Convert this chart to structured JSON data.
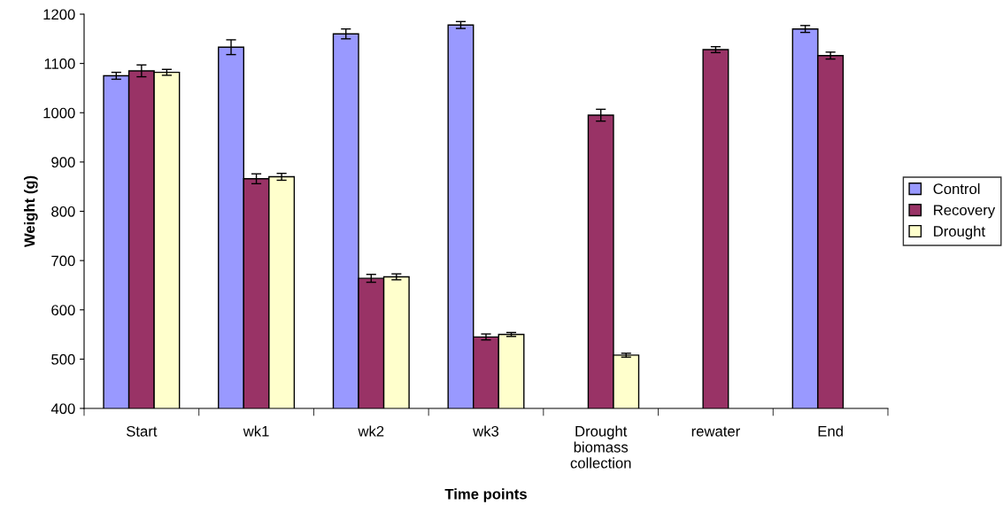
{
  "chart_data": {
    "type": "bar",
    "xlabel": "Time points",
    "ylabel": "Weight (g)",
    "categories": [
      "Start",
      "wk1",
      "wk2",
      "wk3",
      "Drought\nbiomass\ncollection",
      "rewater",
      "End"
    ],
    "series": [
      {
        "name": "Control",
        "color": "#9999ff",
        "values": [
          1075,
          1133,
          1160,
          1178,
          null,
          null,
          1170
        ],
        "errors": [
          7,
          15,
          10,
          7,
          null,
          null,
          7
        ]
      },
      {
        "name": "Recovery",
        "color": "#993366",
        "values": [
          1085,
          866,
          664,
          545,
          995,
          1128,
          1116
        ],
        "errors": [
          12,
          10,
          8,
          6,
          12,
          6,
          7
        ]
      },
      {
        "name": "Drought",
        "color": "#ffffcc",
        "values": [
          1082,
          870,
          667,
          550,
          508,
          null,
          null
        ],
        "errors": [
          6,
          7,
          6,
          4,
          4,
          null,
          null
        ]
      }
    ],
    "ylim": [
      400,
      1200
    ],
    "yticks": [
      400,
      500,
      600,
      700,
      800,
      900,
      1000,
      1100,
      1200
    ],
    "grid": false,
    "legend": "right"
  }
}
